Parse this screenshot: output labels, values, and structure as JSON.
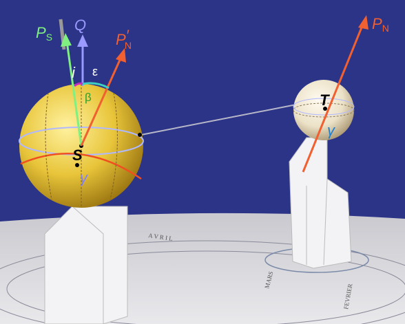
{
  "labels": {
    "sun_pole": {
      "main": "P",
      "sub": "S"
    },
    "orbit_pole": "Q",
    "earth_pole_at_sun": {
      "main": "P",
      "prime": "′",
      "sub": "N"
    },
    "inclination": "i",
    "obliquity": "ε",
    "beta": "β",
    "sun": "S",
    "sun_gamma": "γ",
    "earth": "T",
    "earth_gamma": "γ",
    "earth_pole": {
      "main": "P",
      "sub": "N"
    }
  },
  "table_text": [
    "A V R I L",
    "MARS",
    "FEVRIER"
  ]
}
